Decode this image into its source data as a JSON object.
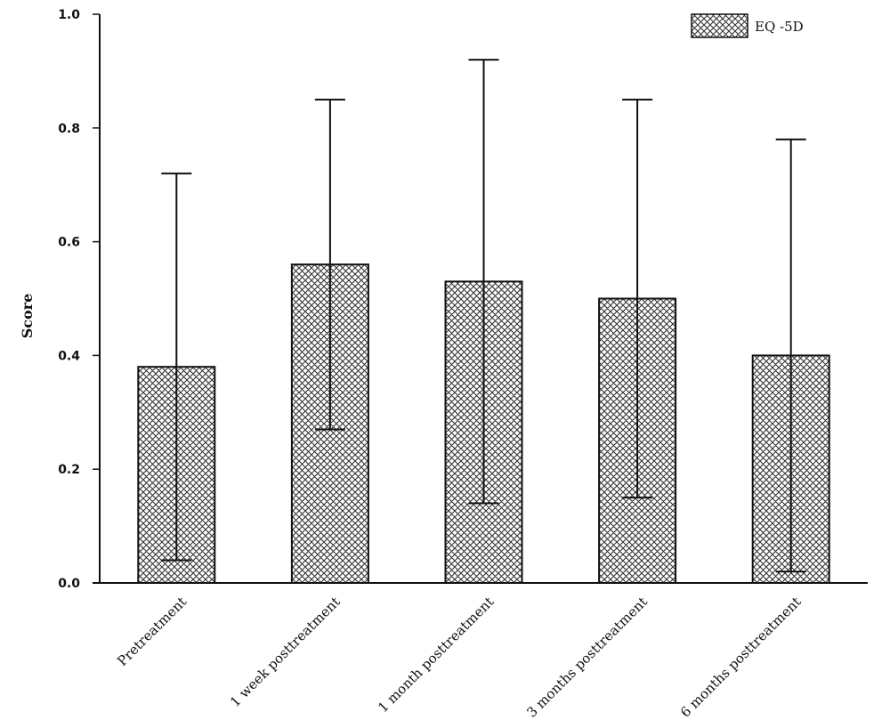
{
  "chart_data": {
    "type": "bar",
    "categories": [
      "Pretreatment",
      "1 week posttreatment",
      "1 month posttreatment",
      "3 months posttreatment",
      "6 months posttreatment"
    ],
    "series": [
      {
        "name": "EQ -5D",
        "values": [
          0.38,
          0.56,
          0.53,
          0.5,
          0.4
        ],
        "error_low": [
          0.04,
          0.27,
          0.14,
          0.15,
          0.02
        ],
        "error_high": [
          0.72,
          0.85,
          0.92,
          0.85,
          0.78
        ]
      }
    ],
    "xlabel": "",
    "ylabel": "Score",
    "ylim": [
      0,
      1.0
    ],
    "yticks": [
      "0.0",
      "0.2",
      "0.4",
      "0.6",
      "0.8",
      "1.0"
    ],
    "grid": false,
    "legend_position": "top-right",
    "bar_fill": "crosshatch",
    "colors": {
      "stroke": "#111111",
      "hatch": "#333333",
      "background": "#ffffff"
    }
  }
}
